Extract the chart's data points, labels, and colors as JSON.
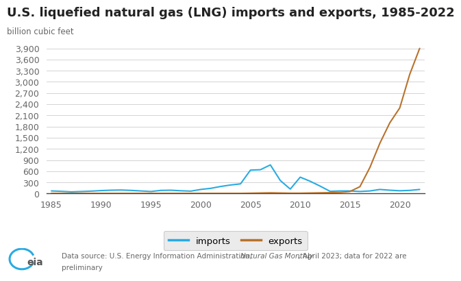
{
  "title": "U.S. liquefied natural gas (LNG) imports and exports, 1985-2022",
  "ylabel": "billion cubic feet",
  "years": [
    1985,
    1986,
    1987,
    1988,
    1989,
    1990,
    1991,
    1992,
    1993,
    1994,
    1995,
    1996,
    1997,
    1998,
    1999,
    2000,
    2001,
    2002,
    2003,
    2004,
    2005,
    2006,
    2007,
    2008,
    2009,
    2010,
    2011,
    2012,
    2013,
    2014,
    2015,
    2016,
    2017,
    2018,
    2019,
    2020,
    2021,
    2022
  ],
  "imports": [
    70,
    60,
    45,
    55,
    65,
    80,
    90,
    95,
    85,
    70,
    55,
    85,
    90,
    75,
    65,
    110,
    140,
    190,
    230,
    260,
    630,
    640,
    770,
    350,
    120,
    440,
    330,
    200,
    60,
    70,
    70,
    55,
    70,
    110,
    90,
    75,
    85,
    110
  ],
  "exports": [
    5,
    5,
    5,
    5,
    5,
    5,
    5,
    5,
    5,
    5,
    5,
    5,
    5,
    5,
    5,
    5,
    5,
    5,
    5,
    5,
    10,
    15,
    20,
    15,
    10,
    10,
    15,
    20,
    25,
    30,
    55,
    185,
    700,
    1350,
    1900,
    2300,
    3200,
    3900
  ],
  "imports_color": "#29ABE2",
  "exports_color": "#B8722B",
  "background_color": "#FFFFFF",
  "grid_color": "#CCCCCC",
  "title_fontsize": 13,
  "label_fontsize": 8.5,
  "tick_fontsize": 9,
  "yticks": [
    0,
    300,
    600,
    900,
    1200,
    1500,
    1800,
    2100,
    2400,
    2700,
    3000,
    3300,
    3600,
    3900
  ],
  "ytick_labels": [
    "0",
    "300",
    "600",
    "900",
    "1,200",
    "1,500",
    "1,800",
    "2,100",
    "2,400",
    "2,700",
    "3,000",
    "3,300",
    "3,600",
    "3,900"
  ],
  "xticks": [
    1985,
    1990,
    1995,
    2000,
    2005,
    2010,
    2015,
    2020
  ],
  "xlim": [
    1984.5,
    2022.5
  ],
  "ylim": [
    0,
    4050
  ],
  "legend_labels": [
    "imports",
    "exports"
  ],
  "line_width": 1.5,
  "source_normal1": "Data source: U.S. Energy Information Administration, ",
  "source_italic": "Natural Gas Monthly",
  "source_normal2": " , April 2023; data for 2022 are",
  "source_normal3": "preliminary",
  "eia_color": "#29ABE2",
  "text_color": "#666666",
  "title_color": "#222222"
}
